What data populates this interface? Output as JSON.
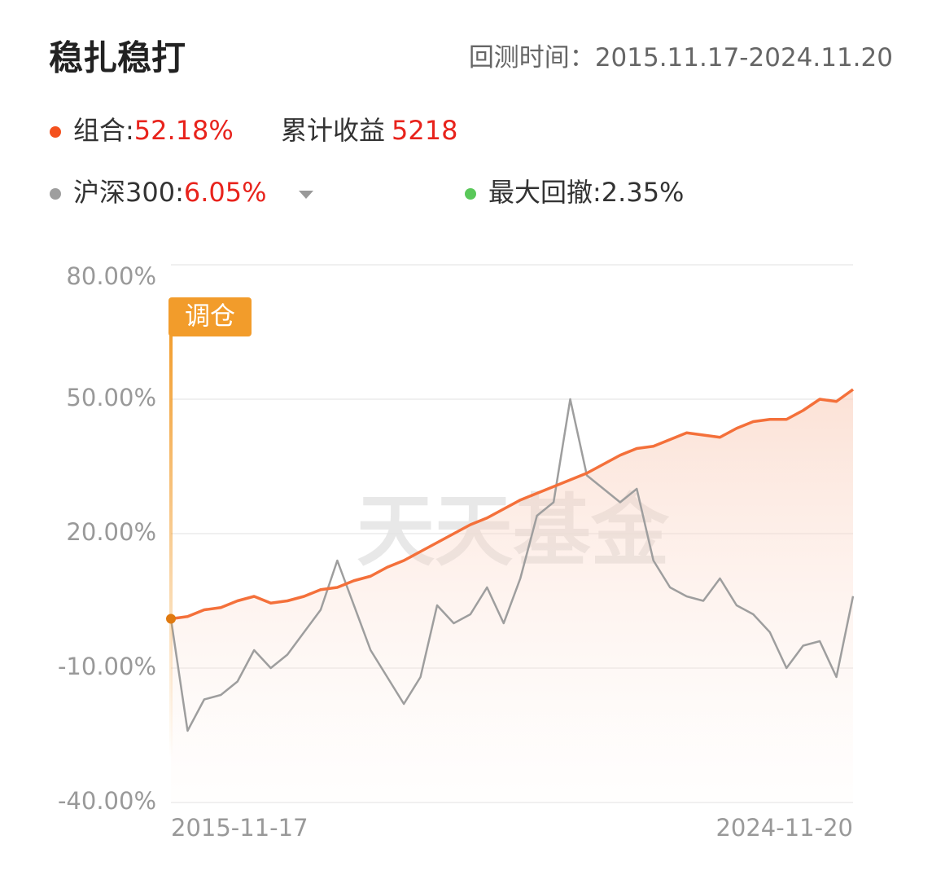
{
  "header": {
    "title": "稳扎稳打",
    "period_label": "回测时间：",
    "period": "2015.11.17-2024.11.20"
  },
  "summary": {
    "cumulative_label": "累计收益",
    "cumulative_value": "5218",
    "drawdown_label": "最大回撤:",
    "drawdown_value": "2.35%"
  },
  "chart_data": {
    "type": "line",
    "annotation": "调仓",
    "watermark": "天天基金",
    "categories": [
      "2015-11-17",
      null,
      null,
      null,
      null,
      null,
      null,
      null,
      null,
      null,
      null,
      null,
      null,
      null,
      null,
      null,
      null,
      null,
      null,
      null,
      null,
      null,
      null,
      null,
      null,
      null,
      null,
      null,
      null,
      null,
      null,
      null,
      null,
      null,
      null,
      null,
      null,
      null,
      null,
      null,
      null,
      "2024-11-20"
    ],
    "series": [
      {
        "name": "组合:",
        "return_label": "52.18%",
        "color": "#f4703a",
        "values": [
          1,
          1.5,
          3,
          3.5,
          5,
          6,
          4.5,
          5,
          6,
          7.5,
          8,
          9.5,
          10.5,
          12.5,
          14,
          16,
          18,
          20,
          22,
          23.5,
          25.5,
          27.5,
          29,
          30.5,
          32,
          33.5,
          35.5,
          37.5,
          39,
          39.5,
          41,
          42.5,
          42,
          41.5,
          43.5,
          45,
          45.5,
          45.5,
          47.5,
          50,
          49.5,
          52.18
        ]
      },
      {
        "name": "沪深300:",
        "return_label": "6.05%",
        "color": "#9e9e9e",
        "values": [
          1,
          -24,
          -17,
          -16,
          -13,
          -6,
          -10,
          -7,
          -2,
          3,
          14,
          4,
          -6,
          -12,
          -18,
          -12,
          4,
          0,
          2,
          8,
          0,
          10,
          24,
          27,
          50,
          33,
          30,
          27,
          30,
          14,
          8,
          6,
          5,
          10,
          4,
          2,
          -2,
          -10,
          -5,
          -4,
          -12,
          6.05
        ]
      }
    ],
    "ylim": [
      -40,
      80
    ],
    "yticks": [
      {
        "value": -40,
        "label": "-40.00%"
      },
      {
        "value": -10,
        "label": "-10.00%"
      },
      {
        "value": 20,
        "label": "20.00%"
      },
      {
        "value": 50,
        "label": "50.00%"
      },
      {
        "value": 80,
        "label": "80.00%"
      }
    ],
    "grid": true
  }
}
